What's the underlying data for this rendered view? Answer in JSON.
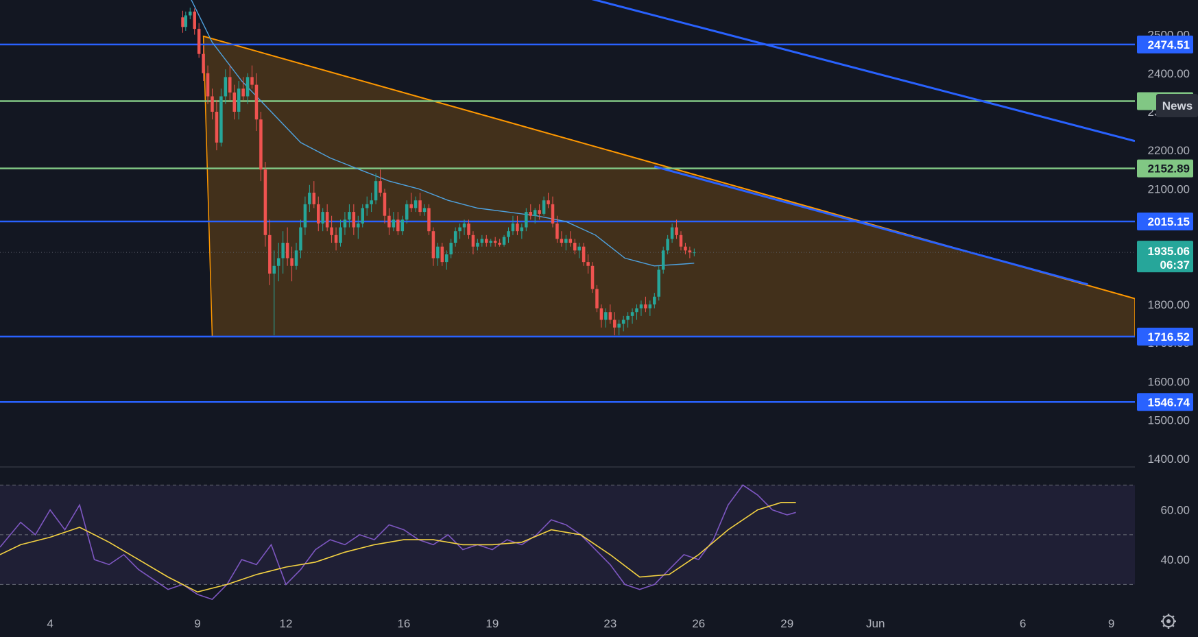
{
  "chart_data": {
    "type": "candlestick",
    "price_axis": {
      "ticks": [
        1400,
        1500,
        1600,
        1700,
        1800,
        2100,
        2200,
        2300,
        2400,
        2500
      ],
      "tick_labels": [
        "1400.00",
        "1500.00",
        "1600.00",
        "1700.00",
        "1800.00",
        "2100.00",
        "2200.00",
        "2300.00",
        "2400.00",
        "2500.00"
      ],
      "range": [
        1380,
        2590
      ]
    },
    "time_axis": {
      "labels": [
        {
          "day": 4,
          "text": "4"
        },
        {
          "day": 9,
          "text": "9"
        },
        {
          "day": 12,
          "text": "12"
        },
        {
          "day": 16,
          "text": "16"
        },
        {
          "day": 19,
          "text": "19"
        },
        {
          "day": 23,
          "text": "23"
        },
        {
          "day": 26,
          "text": "26"
        },
        {
          "day": 29,
          "text": "29"
        },
        {
          "day": 32,
          "text": "Jun"
        },
        {
          "day": 37,
          "text": "6"
        },
        {
          "day": 40,
          "text": "9"
        }
      ],
      "range": [
        2.3,
        40.8
      ]
    },
    "horizontal_levels": [
      {
        "price": 2474.51,
        "label": "2474.51",
        "color": "#2962ff"
      },
      {
        "price": 2327.5,
        "label": "23",
        "color": "#81c784"
      },
      {
        "price": 2152.89,
        "label": "2152.89",
        "color": "#81c784"
      },
      {
        "price": 2015.15,
        "label": "2015.15",
        "color": "#2962ff"
      },
      {
        "price": 1716.52,
        "label": "1716.52",
        "color": "#2962ff"
      },
      {
        "price": 1546.74,
        "label": "1546.74",
        "color": "#2962ff"
      }
    ],
    "current_price": {
      "price": 1935.06,
      "label": "1935.06",
      "countdown": "06:37",
      "color": "#26a69a"
    },
    "triangle": {
      "points": [
        [
          9.2,
          2496
        ],
        [
          9.5,
          1716.52
        ],
        [
          40.8,
          1716.52
        ],
        [
          40.8,
          1815
        ]
      ],
      "top_edge": [
        [
          9.2,
          2496
        ],
        [
          40.8,
          1815
        ]
      ],
      "fill": "rgba(255,152,0,0.2)",
      "edge_color": "#ff9800"
    },
    "trendlines": [
      {
        "points": [
          [
            16,
            2720
          ],
          [
            40.8,
            2224
          ]
        ],
        "color": "#2962ff"
      },
      {
        "points": [
          [
            24.5,
            2158
          ],
          [
            39.2,
            1852
          ]
        ],
        "color": "#2962ff"
      }
    ],
    "candle_colors": {
      "up": "#26a69a",
      "down": "#ef5350"
    },
    "candles": [
      [
        8.5,
        2545,
        2562,
        2505,
        2520
      ],
      [
        8.6,
        2520,
        2560,
        2510,
        2550
      ],
      [
        8.75,
        2550,
        2570,
        2540,
        2560
      ],
      [
        8.9,
        2560,
        2568,
        2500,
        2515
      ],
      [
        9.05,
        2515,
        2530,
        2440,
        2450
      ],
      [
        9.2,
        2450,
        2470,
        2380,
        2400
      ],
      [
        9.35,
        2400,
        2420,
        2320,
        2340
      ],
      [
        9.5,
        2340,
        2360,
        2280,
        2300
      ],
      [
        9.65,
        2300,
        2330,
        2200,
        2220
      ],
      [
        9.8,
        2220,
        2360,
        2210,
        2340
      ],
      [
        9.95,
        2340,
        2410,
        2320,
        2390
      ],
      [
        10.1,
        2390,
        2420,
        2330,
        2350
      ],
      [
        10.25,
        2350,
        2370,
        2280,
        2300
      ],
      [
        10.4,
        2300,
        2380,
        2280,
        2360
      ],
      [
        10.55,
        2360,
        2390,
        2330,
        2340
      ],
      [
        10.7,
        2340,
        2400,
        2320,
        2390
      ],
      [
        10.85,
        2390,
        2420,
        2360,
        2370
      ],
      [
        11.0,
        2370,
        2400,
        2250,
        2280
      ],
      [
        11.15,
        2280,
        2300,
        2120,
        2150
      ],
      [
        11.3,
        2150,
        2170,
        1950,
        1980
      ],
      [
        11.45,
        1980,
        2020,
        1850,
        1880
      ],
      [
        11.6,
        1880,
        1940,
        1720,
        1900
      ],
      [
        11.75,
        1900,
        1960,
        1860,
        1920
      ],
      [
        11.9,
        1920,
        1990,
        1880,
        1960
      ],
      [
        12.05,
        1960,
        2000,
        1900,
        1920
      ],
      [
        12.2,
        1920,
        1950,
        1860,
        1900
      ],
      [
        12.35,
        1900,
        1960,
        1890,
        1940
      ],
      [
        12.5,
        1940,
        2020,
        1920,
        2000
      ],
      [
        12.65,
        2000,
        2080,
        1980,
        2060
      ],
      [
        12.8,
        2060,
        2110,
        2040,
        2090
      ],
      [
        12.95,
        2090,
        2120,
        2050,
        2060
      ],
      [
        13.1,
        2060,
        2080,
        1990,
        2010
      ],
      [
        13.25,
        2010,
        2050,
        1990,
        2040
      ],
      [
        13.4,
        2040,
        2060,
        1990,
        2000
      ],
      [
        13.55,
        2000,
        2030,
        1960,
        1980
      ],
      [
        13.7,
        1980,
        2000,
        1940,
        1960
      ],
      [
        13.85,
        1960,
        2020,
        1950,
        2000
      ],
      [
        14.0,
        2000,
        2040,
        1980,
        2020
      ],
      [
        14.15,
        2020,
        2060,
        2000,
        2040
      ],
      [
        14.3,
        2040,
        2060,
        1980,
        2000
      ],
      [
        14.45,
        2000,
        2030,
        1970,
        2010
      ],
      [
        14.6,
        2010,
        2060,
        2000,
        2050
      ],
      [
        14.75,
        2050,
        2080,
        2030,
        2060
      ],
      [
        14.9,
        2060,
        2090,
        2040,
        2070
      ],
      [
        15.05,
        2070,
        2140,
        2060,
        2120
      ],
      [
        15.2,
        2120,
        2150,
        2080,
        2090
      ],
      [
        15.35,
        2090,
        2100,
        2010,
        2030
      ],
      [
        15.5,
        2030,
        2050,
        1980,
        2000
      ],
      [
        15.65,
        2000,
        2040,
        1990,
        2020
      ],
      [
        15.8,
        2020,
        2040,
        1980,
        1990
      ],
      [
        15.95,
        1990,
        2030,
        1980,
        2020
      ],
      [
        16.1,
        2020,
        2070,
        2010,
        2060
      ],
      [
        16.25,
        2060,
        2090,
        2040,
        2050
      ],
      [
        16.4,
        2050,
        2080,
        2040,
        2070
      ],
      [
        16.55,
        2070,
        2090,
        2030,
        2040
      ],
      [
        16.7,
        2040,
        2060,
        2030,
        2050
      ],
      [
        16.85,
        2050,
        2060,
        1980,
        1990
      ],
      [
        17.0,
        1990,
        2000,
        1900,
        1920
      ],
      [
        17.15,
        1920,
        1960,
        1900,
        1950
      ],
      [
        17.3,
        1950,
        1960,
        1900,
        1910
      ],
      [
        17.45,
        1910,
        1940,
        1890,
        1930
      ],
      [
        17.6,
        1930,
        1970,
        1920,
        1960
      ],
      [
        17.75,
        1960,
        2000,
        1950,
        1990
      ],
      [
        17.9,
        1990,
        2010,
        1970,
        2000
      ],
      [
        18.05,
        2000,
        2020,
        1980,
        2010
      ],
      [
        18.2,
        2010,
        2020,
        1970,
        1980
      ],
      [
        18.35,
        1980,
        1990,
        1930,
        1950
      ],
      [
        18.5,
        1950,
        1970,
        1940,
        1960
      ],
      [
        18.65,
        1960,
        1980,
        1950,
        1970
      ],
      [
        18.8,
        1970,
        1980,
        1950,
        1960
      ],
      [
        18.95,
        1960,
        1970,
        1950,
        1965
      ],
      [
        19.1,
        1965,
        1975,
        1950,
        1960
      ],
      [
        19.25,
        1960,
        1970,
        1950,
        1955
      ],
      [
        19.4,
        1955,
        1980,
        1950,
        1975
      ],
      [
        19.55,
        1975,
        2000,
        1960,
        1990
      ],
      [
        19.7,
        1990,
        2030,
        1980,
        2010
      ],
      [
        19.85,
        2010,
        2030,
        1980,
        1990
      ],
      [
        20.0,
        1990,
        2010,
        1970,
        2000
      ],
      [
        20.15,
        2000,
        2050,
        1990,
        2040
      ],
      [
        20.3,
        2040,
        2060,
        2020,
        2030
      ],
      [
        20.45,
        2030,
        2050,
        2010,
        2045
      ],
      [
        20.6,
        2045,
        2060,
        2020,
        2035
      ],
      [
        20.75,
        2035,
        2080,
        2030,
        2070
      ],
      [
        20.9,
        2070,
        2090,
        2050,
        2060
      ],
      [
        21.05,
        2060,
        2080,
        2000,
        2010
      ],
      [
        21.2,
        2010,
        2030,
        1960,
        1970
      ],
      [
        21.35,
        1970,
        1990,
        1950,
        1960
      ],
      [
        21.5,
        1960,
        1980,
        1940,
        1970
      ],
      [
        21.65,
        1970,
        1990,
        1950,
        1960
      ],
      [
        21.8,
        1960,
        1970,
        1930,
        1940
      ],
      [
        21.95,
        1940,
        1960,
        1920,
        1950
      ],
      [
        22.1,
        1950,
        1960,
        1900,
        1910
      ],
      [
        22.25,
        1910,
        1930,
        1880,
        1900
      ],
      [
        22.4,
        1900,
        1910,
        1830,
        1840
      ],
      [
        22.55,
        1840,
        1850,
        1780,
        1790
      ],
      [
        22.7,
        1790,
        1800,
        1740,
        1760
      ],
      [
        22.85,
        1760,
        1790,
        1740,
        1780
      ],
      [
        23.0,
        1780,
        1800,
        1750,
        1760
      ],
      [
        23.15,
        1760,
        1780,
        1720,
        1740
      ],
      [
        23.3,
        1740,
        1760,
        1720,
        1750
      ],
      [
        23.45,
        1750,
        1770,
        1730,
        1760
      ],
      [
        23.6,
        1760,
        1780,
        1740,
        1770
      ],
      [
        23.75,
        1770,
        1790,
        1750,
        1780
      ],
      [
        23.9,
        1780,
        1800,
        1760,
        1790
      ],
      [
        24.05,
        1790,
        1810,
        1770,
        1800
      ],
      [
        24.2,
        1800,
        1820,
        1780,
        1790
      ],
      [
        24.35,
        1790,
        1810,
        1770,
        1800
      ],
      [
        24.5,
        1800,
        1830,
        1790,
        1820
      ],
      [
        24.65,
        1820,
        1900,
        1810,
        1890
      ],
      [
        24.8,
        1890,
        1950,
        1880,
        1940
      ],
      [
        24.95,
        1940,
        1980,
        1930,
        1970
      ],
      [
        25.1,
        1970,
        2010,
        1960,
        2000
      ],
      [
        25.25,
        2000,
        2020,
        1970,
        1980
      ],
      [
        25.4,
        1980,
        1990,
        1940,
        1950
      ],
      [
        25.55,
        1950,
        1960,
        1930,
        1940
      ],
      [
        25.7,
        1940,
        1950,
        1920,
        1935
      ],
      [
        25.85,
        1935,
        1945,
        1925,
        1935
      ]
    ],
    "ma_line": [
      [
        8.6,
        2620
      ],
      [
        9.5,
        2480
      ],
      [
        10.5,
        2380
      ],
      [
        11.5,
        2300
      ],
      [
        12.5,
        2220
      ],
      [
        13.5,
        2180
      ],
      [
        14.5,
        2150
      ],
      [
        15.5,
        2120
      ],
      [
        16.5,
        2100
      ],
      [
        17.5,
        2070
      ],
      [
        18.5,
        2050
      ],
      [
        19.5,
        2040
      ],
      [
        20.5,
        2030
      ],
      [
        21.5,
        2015
      ],
      [
        22.5,
        1980
      ],
      [
        23.5,
        1920
      ],
      [
        24.5,
        1900
      ],
      [
        25.5,
        1905
      ],
      [
        25.85,
        1907
      ]
    ],
    "rsi": {
      "ticks": [
        40,
        60
      ],
      "tick_labels": [
        "40.00",
        "60.00"
      ],
      "band": [
        30,
        70
      ],
      "range": [
        21,
        77
      ],
      "rsi_color": "#7e57c2",
      "ma_color": "#f5d342",
      "rsi_line": [
        [
          2.3,
          45
        ],
        [
          3,
          55
        ],
        [
          3.5,
          50
        ],
        [
          4,
          60
        ],
        [
          4.5,
          52
        ],
        [
          5,
          62
        ],
        [
          5.5,
          40
        ],
        [
          6,
          38
        ],
        [
          6.5,
          42
        ],
        [
          7,
          36
        ],
        [
          7.5,
          32
        ],
        [
          8,
          28
        ],
        [
          8.5,
          30
        ],
        [
          9,
          26
        ],
        [
          9.5,
          24
        ],
        [
          10,
          30
        ],
        [
          10.5,
          40
        ],
        [
          11,
          38
        ],
        [
          11.5,
          46
        ],
        [
          12,
          30
        ],
        [
          12.5,
          36
        ],
        [
          13,
          44
        ],
        [
          13.5,
          48
        ],
        [
          14,
          46
        ],
        [
          14.5,
          50
        ],
        [
          15,
          48
        ],
        [
          15.5,
          54
        ],
        [
          16,
          52
        ],
        [
          16.5,
          48
        ],
        [
          17,
          46
        ],
        [
          17.5,
          50
        ],
        [
          18,
          44
        ],
        [
          18.5,
          46
        ],
        [
          19,
          44
        ],
        [
          19.5,
          48
        ],
        [
          20,
          46
        ],
        [
          20.5,
          50
        ],
        [
          21,
          56
        ],
        [
          21.5,
          54
        ],
        [
          22,
          50
        ],
        [
          22.5,
          44
        ],
        [
          23,
          38
        ],
        [
          23.5,
          30
        ],
        [
          24,
          28
        ],
        [
          24.5,
          30
        ],
        [
          25,
          36
        ],
        [
          25.5,
          42
        ],
        [
          26,
          40
        ],
        [
          26.5,
          48
        ],
        [
          27,
          62
        ],
        [
          27.5,
          70
        ],
        [
          28,
          66
        ],
        [
          28.5,
          60
        ],
        [
          29,
          58
        ],
        [
          29.3,
          59
        ]
      ],
      "ma_line": [
        [
          2.3,
          42
        ],
        [
          3,
          46
        ],
        [
          4,
          49
        ],
        [
          5,
          53
        ],
        [
          6,
          47
        ],
        [
          7,
          40
        ],
        [
          8,
          33
        ],
        [
          9,
          27
        ],
        [
          10,
          30
        ],
        [
          11,
          34
        ],
        [
          12,
          37
        ],
        [
          13,
          39
        ],
        [
          14,
          43
        ],
        [
          15,
          46
        ],
        [
          16,
          48
        ],
        [
          17,
          48
        ],
        [
          18,
          46
        ],
        [
          19,
          46
        ],
        [
          20,
          47
        ],
        [
          21,
          52
        ],
        [
          22,
          50
        ],
        [
          23,
          42
        ],
        [
          24,
          33
        ],
        [
          25,
          34
        ],
        [
          26,
          42
        ],
        [
          27,
          52
        ],
        [
          28,
          60
        ],
        [
          28.8,
          63
        ],
        [
          29.3,
          63
        ]
      ]
    },
    "news_badge": "News",
    "grid": false,
    "legend": "none"
  }
}
